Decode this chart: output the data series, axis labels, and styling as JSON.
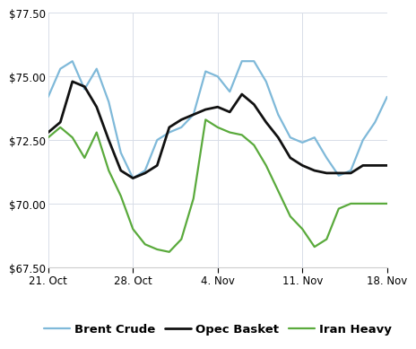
{
  "xlim": [
    0,
    28
  ],
  "ylim": [
    67.5,
    77.5
  ],
  "yticks": [
    67.5,
    70.0,
    72.5,
    75.0,
    77.5
  ],
  "xtick_positions": [
    0,
    7,
    14,
    21,
    28
  ],
  "xtick_labels": [
    "21. Oct",
    "28. Oct",
    "4. Nov",
    "11. Nov",
    "18. Nov"
  ],
  "brent_crude": {
    "x": [
      0,
      1,
      2,
      3,
      4,
      5,
      6,
      7,
      8,
      9,
      10,
      11,
      12,
      13,
      14,
      15,
      16,
      17,
      18,
      19,
      20,
      21,
      22,
      23,
      24,
      25,
      26,
      27,
      28
    ],
    "y": [
      74.2,
      75.3,
      75.6,
      74.5,
      75.3,
      74.0,
      72.0,
      71.0,
      71.3,
      72.5,
      72.8,
      73.0,
      73.5,
      75.2,
      75.0,
      74.4,
      75.6,
      75.6,
      74.8,
      73.5,
      72.6,
      72.4,
      72.6,
      71.8,
      71.1,
      71.3,
      72.5,
      73.2,
      74.2
    ],
    "color": "#7fb9d9",
    "linewidth": 1.6,
    "label": "Brent Crude"
  },
  "opec_basket": {
    "x": [
      0,
      1,
      2,
      3,
      4,
      5,
      6,
      7,
      8,
      9,
      10,
      11,
      12,
      13,
      14,
      15,
      16,
      17,
      18,
      19,
      20,
      21,
      22,
      23,
      24,
      25,
      26,
      27,
      28
    ],
    "y": [
      72.8,
      73.2,
      74.8,
      74.6,
      73.8,
      72.5,
      71.3,
      71.0,
      71.2,
      71.5,
      73.0,
      73.3,
      73.5,
      73.7,
      73.8,
      73.6,
      74.3,
      73.9,
      73.2,
      72.6,
      71.8,
      71.5,
      71.3,
      71.2,
      71.2,
      71.2,
      71.5,
      71.5,
      71.5
    ],
    "color": "#111111",
    "linewidth": 2.0,
    "label": "Opec Basket"
  },
  "iran_heavy": {
    "x": [
      0,
      1,
      2,
      3,
      4,
      5,
      6,
      7,
      8,
      9,
      10,
      11,
      12,
      13,
      14,
      15,
      16,
      17,
      18,
      19,
      20,
      21,
      22,
      23,
      24,
      25,
      26,
      27,
      28
    ],
    "y": [
      72.6,
      73.0,
      72.6,
      71.8,
      72.8,
      71.3,
      70.3,
      69.0,
      68.4,
      68.2,
      68.1,
      68.6,
      70.2,
      73.3,
      73.0,
      72.8,
      72.7,
      72.3,
      71.5,
      70.5,
      69.5,
      69.0,
      68.3,
      68.6,
      69.8,
      70.0,
      70.0,
      70.0,
      70.0
    ],
    "color": "#5aaa3c",
    "linewidth": 1.6,
    "label": "Iran Heavy"
  },
  "background_color": "#ffffff",
  "grid_color": "#d8dde8",
  "legend_fontsize": 9.5,
  "tick_fontsize": 8.5
}
